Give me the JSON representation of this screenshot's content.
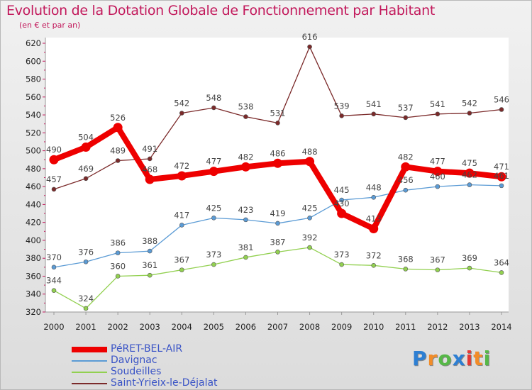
{
  "title": "Evolution de la Dotation Globale de Fonctionnement par Habitant",
  "subtitle": "(en € et par an)",
  "logo": {
    "text": "Proxiti",
    "letters": [
      "P",
      "r",
      "o",
      "x",
      "i",
      "t",
      "i"
    ],
    "colors": [
      "#2d7fd3",
      "#f28c28",
      "#56b847",
      "#2d7fd3",
      "#e53935",
      "#f28c28",
      "#56b847"
    ]
  },
  "chart_data": {
    "type": "line",
    "x": [
      2000,
      2001,
      2002,
      2003,
      2004,
      2005,
      2006,
      2007,
      2008,
      2009,
      2010,
      2011,
      2012,
      2013,
      2014
    ],
    "ylim": [
      320,
      620
    ],
    "yticks": [
      320,
      340,
      360,
      380,
      400,
      420,
      440,
      460,
      480,
      500,
      520,
      540,
      560,
      580,
      600,
      620
    ],
    "grid": false,
    "legend_position": "bottom-left",
    "series": [
      {
        "name": "PéRET-BEL-AIR",
        "color": "#ee0000",
        "values": [
          490,
          504,
          526,
          468,
          472,
          477,
          482,
          486,
          488,
          430,
          413,
          482,
          477,
          475,
          471
        ]
      },
      {
        "name": "Davignac",
        "color": "#5b9bd5",
        "values": [
          370,
          376,
          386,
          388,
          417,
          425,
          423,
          419,
          425,
          445,
          448,
          456,
          460,
          462,
          461
        ]
      },
      {
        "name": "Soudeilles",
        "color": "#92d050",
        "values": [
          344,
          324,
          360,
          361,
          367,
          373,
          381,
          387,
          392,
          373,
          372,
          368,
          367,
          369,
          364
        ]
      },
      {
        "name": "Saint-Yrieix-le-Déjalat",
        "color": "#7b2a2a",
        "values": [
          457,
          469,
          489,
          491,
          542,
          548,
          538,
          531,
          616,
          539,
          541,
          537,
          541,
          542,
          546
        ]
      }
    ]
  }
}
